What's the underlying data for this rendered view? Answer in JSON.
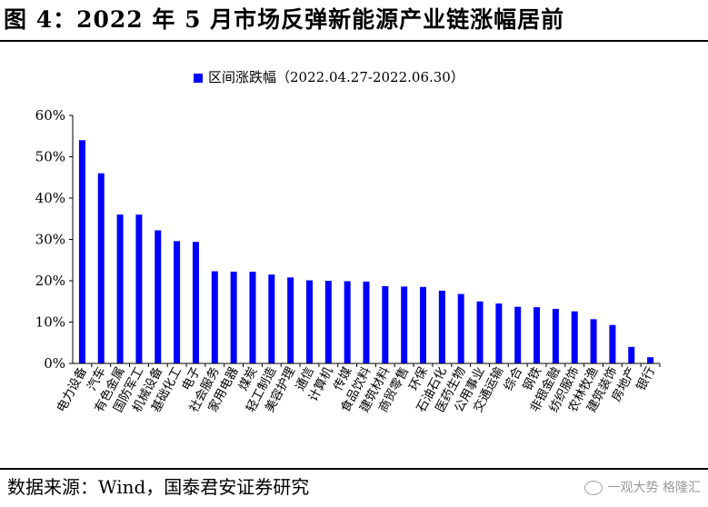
{
  "figure": {
    "title": "图 4：2022 年 5 月市场反弹新能源产业链涨幅居前",
    "source": "数据来源：Wind，国泰君安证券研究",
    "watermark": "一观大势 格隆汇"
  },
  "colors": {
    "bar": "#0000ff",
    "axis": "#000000",
    "background": "#ffffff"
  },
  "chart_data": {
    "type": "bar",
    "title": "",
    "xlabel": "",
    "ylabel": "",
    "ylim": [
      0,
      60
    ],
    "yticks": [
      "0%",
      "10%",
      "20%",
      "30%",
      "40%",
      "50%",
      "60%"
    ],
    "grid": false,
    "legend_position": "top-center",
    "categories": [
      "电力设备",
      "汽车",
      "有色金属",
      "国防军工",
      "机械设备",
      "基础化工",
      "电子",
      "社会服务",
      "家用电器",
      "煤炭",
      "轻工制造",
      "美容护理",
      "通信",
      "计算机",
      "传媒",
      "食品饮料",
      "建筑材料",
      "商贸零售",
      "环保",
      "石油石化",
      "医药生物",
      "公用事业",
      "交通运输",
      "综合",
      "钢铁",
      "非银金融",
      "纺织服饰",
      "农林牧渔",
      "建筑装饰",
      "房地产",
      "银行"
    ],
    "series": [
      {
        "name": "区间涨跌幅（2022.04.27-2022.06.30）",
        "values": [
          54,
          46,
          36,
          36,
          32.2,
          29.6,
          29.4,
          22.3,
          22.2,
          22.2,
          21.5,
          20.8,
          20.1,
          20.0,
          19.9,
          19.8,
          18.7,
          18.6,
          18.5,
          17.6,
          16.8,
          15.0,
          14.5,
          13.7,
          13.6,
          13.2,
          12.6,
          10.7,
          9.3,
          4.0,
          1.5
        ]
      }
    ]
  }
}
